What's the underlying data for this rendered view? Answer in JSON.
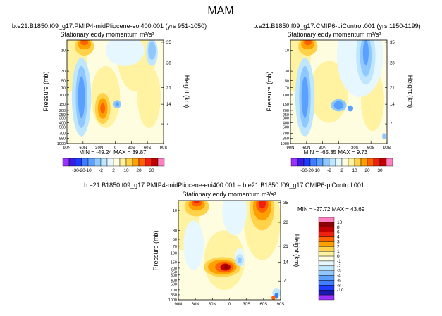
{
  "page_title": "MAM",
  "palettes": {
    "top": [
      "#9b30ff",
      "#3a1ce0",
      "#1e3cff",
      "#3f7fff",
      "#5aa0ff",
      "#8fc8ff",
      "#bfe6ff",
      "#e6f7ff",
      "#fffde0",
      "#fff2a0",
      "#ffd24a",
      "#ffa000",
      "#ff6000",
      "#f02010",
      "#c00000",
      "#ff80c0"
    ],
    "diff": [
      "#9b30ff",
      "#1a1ab0",
      "#1e3cff",
      "#3f7fff",
      "#5aa0ff",
      "#8fc8ff",
      "#bfe6ff",
      "#e6f7ff",
      "#fffde0",
      "#fff2a0",
      "#ffd24a",
      "#ffa000",
      "#ff6000",
      "#f02010",
      "#c00000",
      "#8b0000",
      "#ff80c0"
    ]
  },
  "chart_data": [
    {
      "id": "left",
      "type": "heatmap",
      "header": "b.e21.B1850.f09_g17.PMIP4-midPliocene-eoi400.001 (yrs 951-1050)",
      "title": "Stationary eddy momentum",
      "units": "m²/s²",
      "xlabel": "",
      "ylabel": "Pressure (mb)",
      "y2label": "Height (km)",
      "x_ticks": [
        "90N",
        "60N",
        "30N",
        "0",
        "30S",
        "60S",
        "90S"
      ],
      "y_ticks": [
        "10",
        "30",
        "50",
        "70",
        "100",
        "150",
        "200",
        "250",
        "300",
        "400",
        "500",
        "700",
        "850",
        "1000"
      ],
      "y2_ticks": [
        "35",
        "28",
        "21",
        "14",
        "7"
      ],
      "stats": "MIN = -49.24   MAX =  39.87",
      "min": -49.24,
      "max": 39.87,
      "colorbar_labels": [
        "-30",
        "-20",
        "-10",
        "-2",
        "2",
        "10",
        "20",
        "30"
      ]
    },
    {
      "id": "right",
      "type": "heatmap",
      "header": "b.e21.B1850.f09_g17.CMIP6-piControl.001 (yrs 1150-1199)",
      "title": "Stationary eddy momentum",
      "units": "m²/s²",
      "xlabel": "",
      "ylabel": "Pressure (mb)",
      "y2label": "Height (km)",
      "x_ticks": [
        "90N",
        "60N",
        "30N",
        "0",
        "30S",
        "60S",
        "90S"
      ],
      "y_ticks": [
        "10",
        "30",
        "50",
        "70",
        "100",
        "150",
        "200",
        "250",
        "300",
        "400",
        "500",
        "700",
        "850",
        "1000"
      ],
      "y2_ticks": [
        "35",
        "28",
        "21",
        "14",
        "7"
      ],
      "stats": "MIN = -65.35   MAX =   9.73",
      "min": -65.35,
      "max": 9.73,
      "colorbar_labels": [
        "-30",
        "-20",
        "-10",
        "-2",
        "2",
        "10",
        "20",
        "30"
      ]
    },
    {
      "id": "diff",
      "type": "heatmap",
      "header": "b.e21.B1850.f09_g17.PMIP4-midPliocene-eoi400.001 – b.e21.B1850.f09_g17.CMIP6-piControl.001",
      "title": "Stationary eddy momentum",
      "units": "m²/s²",
      "xlabel": "",
      "ylabel": "Pressure (mb)",
      "y2label": "Height (km)",
      "x_ticks": [
        "90N",
        "60N",
        "30N",
        "0",
        "30S",
        "60S",
        "90S"
      ],
      "y_ticks": [
        "10",
        "30",
        "50",
        "70",
        "100",
        "150",
        "200",
        "250",
        "300",
        "400",
        "500",
        "700",
        "850",
        "1000"
      ],
      "y2_ticks": [
        "35",
        "28",
        "21",
        "14",
        "7"
      ],
      "stats": "MIN = -27.72   MAX =  43.69",
      "min": -27.72,
      "max": 43.69,
      "colorbar_labels": [
        "10",
        "8",
        "6",
        "4",
        "3",
        "2",
        "1",
        "0",
        "-1",
        "-2",
        "-3",
        "-4",
        "-6",
        "-8",
        "-10"
      ]
    }
  ]
}
